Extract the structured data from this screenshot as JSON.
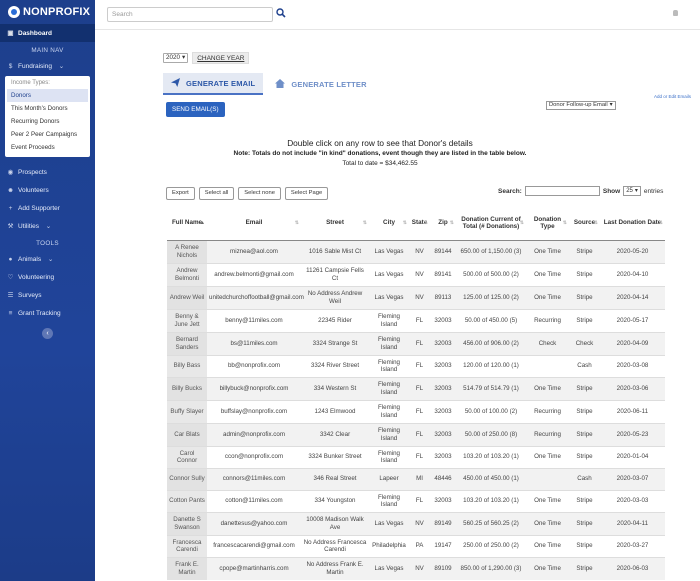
{
  "brand": {
    "name": "NONPROFIX"
  },
  "sidebar": {
    "dashboard": "Dashboard",
    "main_nav": "MAIN NAV",
    "fundraising": "Fundraising",
    "income_types_title": "Income Types:",
    "income_types": [
      "Donors",
      "This Month's Donors",
      "Recurring Donors",
      "Peer 2 Peer Campaigns",
      "Event Proceeds"
    ],
    "items_a": [
      "Prospects",
      "Volunteers",
      "Add Supporter",
      "Utilities"
    ],
    "tools": "TOOLS",
    "items_b": [
      "Animals",
      "Volunteering",
      "Surveys",
      "Grant Tracking"
    ]
  },
  "topbar": {
    "search_placeholder": "Search"
  },
  "controls": {
    "year": "2020",
    "change_year": "CHANGE YEAR",
    "tab_email": "GENERATE EMAIL",
    "tab_letter": "GENERATE LETTER",
    "add_edit": "Add or Edit Emails",
    "send_emails": "SEND EMAIL(S)",
    "followup": "Donor Follow-up Email"
  },
  "info": {
    "line1": "Double click on any row to see that Donor's details",
    "line2": "Note: Totals do not include \"in kind\" donations, event though they are listed in the table below.",
    "line3": "Total to date = $34,462.55"
  },
  "table_tools": {
    "export": "Export",
    "select_all": "Select all",
    "select_none": "Select none",
    "select_page": "Select Page",
    "search_label": "Search:",
    "show_label": "Show",
    "show_value": "25",
    "entries_label": "entries"
  },
  "table": {
    "columns": [
      "Full Name",
      "Email",
      "Street",
      "City",
      "State",
      "Zip",
      "Donation Current of Total (# Donations)",
      "Donation Type",
      "Source",
      "Last Donation Date"
    ],
    "rows": [
      {
        "name": "A Renee Nichols",
        "email": "miznea@aol.com",
        "street": "1016 Sable Mist Ct",
        "street_ok": true,
        "city": "Las Vegas",
        "state": "NV",
        "zip": "89144",
        "donation": "650.00 of 1,150.00 (3)",
        "type": "One Time",
        "source": "Stripe",
        "date": "2020-05-20"
      },
      {
        "name": "Andrew Belmonti",
        "email": "andrew.belmonti@gmail.com",
        "street": "11261 Campsie Fells Ct",
        "street_ok": true,
        "city": "Las Vegas",
        "state": "NV",
        "zip": "89141",
        "donation": "500.00 of 500.00 (2)",
        "type": "One Time",
        "source": "Stripe",
        "date": "2020-04-10"
      },
      {
        "name": "Andrew Weil",
        "email": "unitedchurchoffootball@gmail.com",
        "street": "No Address Andrew Weil",
        "street_ok": false,
        "city": "Las Vegas",
        "state": "NV",
        "zip": "89113",
        "donation": "125.00 of 125.00 (2)",
        "type": "One Time",
        "source": "Stripe",
        "date": "2020-04-14"
      },
      {
        "name": "Benny & June Jett",
        "email": "benny@11miles.com",
        "street": "22345 Rider",
        "street_ok": true,
        "city": "Fleming Island",
        "state": "FL",
        "zip": "32003",
        "donation": "50.00 of 450.00 (5)",
        "type": "Recurring",
        "source": "Stripe",
        "date": "2020-05-17"
      },
      {
        "name": "Bernard Sanders",
        "email": "bs@11miles.com",
        "street": "3324 Strange St",
        "street_ok": true,
        "city": "Fleming Island",
        "state": "FL",
        "zip": "32003",
        "donation": "456.00 of 906.00 (2)",
        "type": "Check",
        "source": "Check",
        "date": "2020-04-09"
      },
      {
        "name": "Billy Bass",
        "email": "bb@nonprofix.com",
        "street": "3324 River Street",
        "street_ok": true,
        "city": "Fleming Island",
        "state": "FL",
        "zip": "32003",
        "donation": "120.00 of 120.00 (1)",
        "type": "",
        "source": "Cash",
        "date": "2020-03-08"
      },
      {
        "name": "Billy Bucks",
        "email": "billybuck@nonprofix.com",
        "street": "334 Western St",
        "street_ok": true,
        "city": "Fleming Island",
        "state": "FL",
        "zip": "32003",
        "donation": "514.79 of 514.79 (1)",
        "type": "One Time",
        "source": "Stripe",
        "date": "2020-03-06"
      },
      {
        "name": "Buffy Slayer",
        "email": "buffslay@nonprofix.com",
        "street": "1243 Elmwood",
        "street_ok": true,
        "city": "Fleming Island",
        "state": "FL",
        "zip": "32003",
        "donation": "50.00 of 100.00 (2)",
        "type": "Recurring",
        "source": "Stripe",
        "date": "2020-06-11"
      },
      {
        "name": "Car Blats",
        "email": "admin@nonprofix.com",
        "street": "3342 Clear",
        "street_ok": true,
        "city": "Fleming Island",
        "state": "FL",
        "zip": "32003",
        "donation": "50.00 of 250.00 (8)",
        "type": "Recurring",
        "source": "Stripe",
        "date": "2020-05-23"
      },
      {
        "name": "Carol Connor",
        "email": "ccon@nonprofix.com",
        "street": "3324 Bunker Street",
        "street_ok": true,
        "city": "Fleming Island",
        "state": "FL",
        "zip": "32003",
        "donation": "103.20 of 103.20 (1)",
        "type": "One Time",
        "source": "Stripe",
        "date": "2020-01-04"
      },
      {
        "name": "Connor Sully",
        "email": "connors@11miles.com",
        "street": "346 Real Street",
        "street_ok": true,
        "city": "Lapeer",
        "state": "MI",
        "zip": "48446",
        "donation": "450.00 of 450.00 (1)",
        "type": "",
        "source": "Cash",
        "date": "2020-03-07"
      },
      {
        "name": "Cotton Pants",
        "email": "cotton@11miles.com",
        "street": "334 Youngston",
        "street_ok": true,
        "city": "Fleming Island",
        "state": "FL",
        "zip": "32003",
        "donation": "103.20 of 103.20 (1)",
        "type": "One Time",
        "source": "Stripe",
        "date": "2020-03-03"
      },
      {
        "name": "Danette S Swanson",
        "email": "danettesus@yahoo.com",
        "street": "10008 Madison Walk Ave",
        "street_ok": true,
        "city": "Las Vegas",
        "state": "NV",
        "zip": "89149",
        "donation": "560.25 of 560.25 (2)",
        "type": "One Time",
        "source": "Stripe",
        "date": "2020-04-11"
      },
      {
        "name": "Francesca Carendi",
        "email": "francescacarendi@gmail.com",
        "street": "No Address Francesca Carendi",
        "street_ok": false,
        "city": "Philadelphia",
        "state": "PA",
        "zip": "19147",
        "donation": "250.00 of 250.00 (2)",
        "type": "One Time",
        "source": "Stripe",
        "date": "2020-03-27"
      },
      {
        "name": "Frank E. Martin",
        "email": "cpope@martinharris.com",
        "street": "No Address Frank E. Martin",
        "street_ok": false,
        "city": "Las Vegas",
        "state": "NV",
        "zip": "89109",
        "donation": "850.00 of 1,290.00 (3)",
        "type": "One Time",
        "source": "Stripe",
        "date": "2020-06-03"
      }
    ]
  }
}
